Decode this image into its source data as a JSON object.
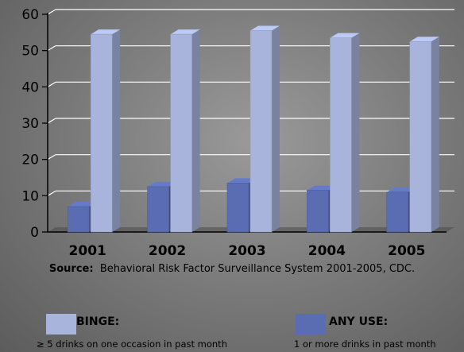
{
  "chart_data": {
    "type": "bar",
    "categories": [
      "2001",
      "2002",
      "2003",
      "2004",
      "2005"
    ],
    "series": [
      {
        "name": "ANY USE",
        "values": [
          7,
          12.5,
          13.5,
          11.5,
          11
        ],
        "color": "#5a6db3"
      },
      {
        "name": "BINGE",
        "values": [
          54.5,
          54.5,
          55.5,
          53.5,
          52.5
        ],
        "color": "#a8b4dc"
      }
    ],
    "ylim": [
      0,
      60
    ],
    "yticks": [
      0,
      10,
      20,
      30,
      40,
      50,
      60
    ],
    "grid": true
  },
  "source": {
    "label": "Source:",
    "text": "Behavioral Risk Factor Surveillance System 2001-2005, CDC."
  },
  "legend": [
    {
      "title": "BINGE:",
      "description": "≥ 5 drinks on one occasion in past month",
      "color": "#a8b4dc"
    },
    {
      "title": "ANY USE:",
      "description": "1 or more drinks in past month",
      "color": "#5a6db3"
    }
  ]
}
